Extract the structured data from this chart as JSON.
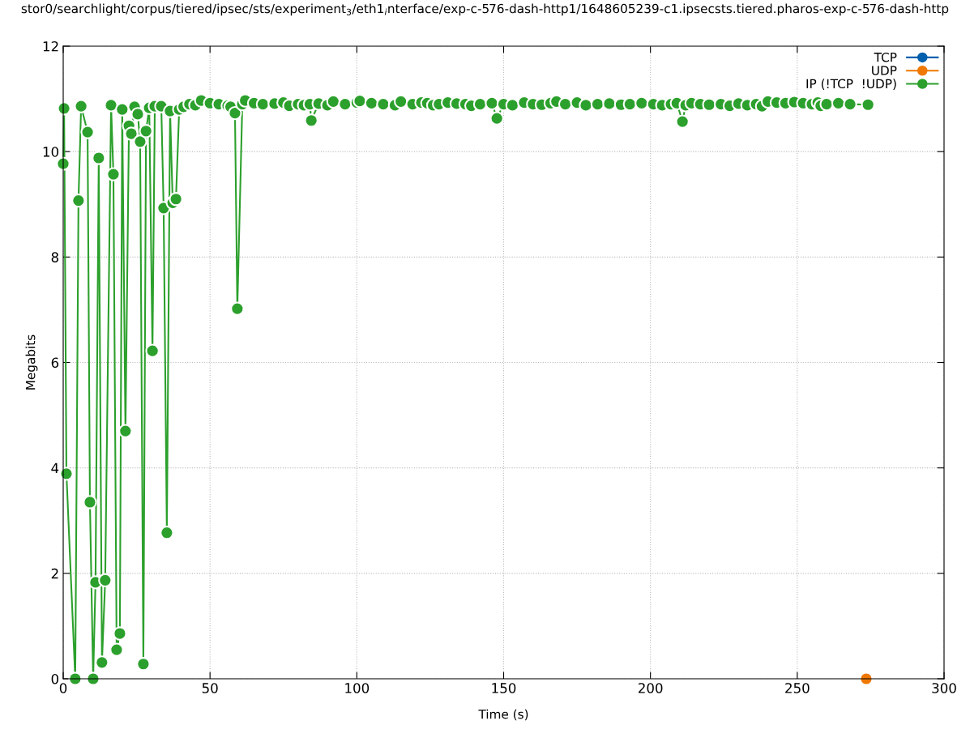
{
  "chart_data": {
    "type": "line",
    "title": "stor0/searchlight/corpus/tiered/ipsec/sts/experiment$_{3}$/eth1$_{i}$nterface/exp-c-576-dash-http1/1648605239-c1.ipsecsts.tiered.pharos-exp-c-576-dash-http",
    "xlabel": "Time (s)",
    "ylabel": "Megabits",
    "series": [
      {
        "name": "TCP",
        "color": "#0060ad"
      },
      {
        "name": "UDP",
        "color": "#f07800",
        "x": [
          273.5
        ],
        "values": [
          0
        ]
      },
      {
        "name": "IP (!TCP  !UDP)",
        "color": "#2ca02c",
        "x": [
          0,
          0.3,
          1.1,
          4.1,
          5.2,
          6.1,
          8.3,
          9.1,
          10.2,
          11.0,
          12.1,
          13.2,
          14.3,
          16.3,
          17.1,
          18.2,
          19.3,
          20.1,
          21.2,
          22.4,
          23.2,
          24.3,
          25.4,
          26.2,
          27.3,
          28.2,
          29.3,
          30.4,
          31.2,
          33.4,
          34.2,
          35.3,
          36.4,
          37.3,
          38.4,
          39.5,
          41,
          43,
          45,
          47,
          50,
          53,
          56,
          57,
          58.5,
          59.3,
          61,
          62,
          65,
          68,
          72,
          75,
          77,
          80,
          82,
          84,
          84.5,
          87,
          90,
          92,
          96,
          100,
          101,
          105,
          109,
          113,
          115,
          119,
          122,
          124,
          126,
          128,
          131,
          134,
          137,
          139,
          142,
          146,
          147.7,
          150,
          153,
          157,
          160,
          163,
          166,
          168,
          171,
          175,
          178,
          182,
          186,
          190,
          193,
          197,
          201,
          204,
          207,
          209,
          210.9,
          212,
          214,
          217,
          220,
          224,
          227,
          230,
          233,
          236,
          238,
          240,
          243,
          246,
          249,
          252,
          255,
          257,
          258,
          260,
          264,
          268,
          274.1
        ],
        "values": [
          9.77,
          10.82,
          3.89,
          0,
          9.07,
          10.86,
          10.37,
          3.35,
          0,
          1.83,
          9.88,
          0.31,
          1.87,
          10.88,
          9.57,
          0.55,
          0.86,
          10.8,
          4.7,
          10.49,
          10.34,
          10.85,
          10.71,
          10.19,
          0.28,
          10.39,
          10.83,
          6.22,
          10.86,
          10.86,
          8.93,
          2.77,
          10.77,
          9.03,
          9.1,
          10.8,
          10.85,
          10.9,
          10.88,
          10.97,
          10.92,
          10.9,
          10.87,
          10.85,
          10.73,
          7.02,
          10.9,
          10.97,
          10.92,
          10.9,
          10.91,
          10.93,
          10.87,
          10.9,
          10.88,
          10.9,
          10.59,
          10.91,
          10.88,
          10.95,
          10.9,
          10.93,
          10.96,
          10.92,
          10.9,
          10.88,
          10.95,
          10.9,
          10.93,
          10.92,
          10.88,
          10.9,
          10.93,
          10.91,
          10.9,
          10.87,
          10.9,
          10.92,
          10.63,
          10.9,
          10.88,
          10.93,
          10.9,
          10.89,
          10.92,
          10.95,
          10.9,
          10.93,
          10.88,
          10.9,
          10.91,
          10.89,
          10.9,
          10.92,
          10.9,
          10.88,
          10.9,
          10.92,
          10.57,
          10.88,
          10.92,
          10.9,
          10.89,
          10.9,
          10.87,
          10.91,
          10.88,
          10.9,
          10.86,
          10.95,
          10.93,
          10.92,
          10.94,
          10.92,
          10.9,
          10.93,
          10.87,
          10.9,
          10.92,
          10.9,
          10.89
        ]
      }
    ],
    "xlim": [
      0,
      300
    ],
    "xticks": [
      0,
      50,
      100,
      150,
      200,
      250,
      300
    ],
    "ylim": [
      0,
      12
    ],
    "yticks": [
      0,
      2,
      4,
      6,
      8,
      10,
      12
    ],
    "grid": true,
    "legend": "top right",
    "marker": "circle",
    "line_style": "solid"
  }
}
